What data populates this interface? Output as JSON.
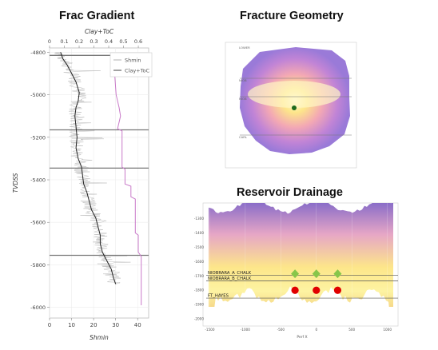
{
  "titles": {
    "left": "Frac Gradient",
    "top_right": "Fracture Geometry",
    "bottom_right": "Reservoir Drainage"
  },
  "colors": {
    "shmin": "#222222",
    "clay": "#c97ac9",
    "noise": "#b8b8b8",
    "horizon": "#777777",
    "drain_low": "#8a6dc8",
    "drain_mid": "#e6a6c6",
    "drain_high": "#fdf3a2",
    "well_marker": "#87c64a",
    "frac_point": "#e00000",
    "frac_center": "#1d6a1d"
  },
  "chart_data": [
    {
      "type": "line",
      "title": "Frac Gradient",
      "xlabel": "Shmin",
      "x2label": "Clay+ToC",
      "ylabel": "TVDSS",
      "xlim": [
        0,
        45
      ],
      "x2lim": [
        0,
        0.67
      ],
      "ylim": [
        -6050,
        -4780
      ],
      "xticks": [
        0,
        10,
        20,
        30,
        40
      ],
      "x2ticks": [
        0,
        0.1,
        0.2,
        0.3,
        0.4,
        0.5,
        0.6
      ],
      "x2ticklabels": [
        "0",
        "0.1",
        "0.2",
        "0.3",
        "0.4",
        "0.5",
        "0.6"
      ],
      "yticks": [
        -4800,
        -5000,
        -5200,
        -5400,
        -5600,
        -5800,
        -6000
      ],
      "horizons": [
        -4815,
        -5165,
        -5345,
        -5755
      ],
      "legend": [
        "Shmin",
        "Clay+ToC"
      ],
      "legend_position": "top-right",
      "grid": true,
      "series": [
        {
          "name": "Shmin",
          "depth": [
            -4800,
            -4815,
            -4830,
            -4860,
            -4900,
            -4940,
            -4990,
            -5030,
            -5060,
            -5100,
            -5150,
            -5200,
            -5250,
            -5300,
            -5340,
            -5380,
            -5420,
            -5460,
            -5500,
            -5540,
            -5580,
            -5620,
            -5660,
            -5700,
            -5740,
            -5780,
            -5820,
            -5860,
            -5890
          ],
          "value": [
            5,
            5.5,
            6,
            8,
            10,
            12,
            13.5,
            13,
            12,
            11.5,
            12,
            12.5,
            12,
            13,
            14.5,
            15,
            15.5,
            17,
            18,
            19,
            21,
            22,
            23,
            23,
            24,
            26,
            28,
            29,
            30
          ]
        },
        {
          "name": "Clay+ToC",
          "depth": [
            -4810,
            -4900,
            -5000,
            -5060,
            -5100,
            -5160,
            -5170,
            -5340,
            -5350,
            -5420,
            -5430,
            -5480,
            -5490,
            -5650,
            -5660,
            -5740,
            -5760,
            -5990
          ],
          "value": [
            0.43,
            0.44,
            0.45,
            0.47,
            0.48,
            0.46,
            0.49,
            0.49,
            0.51,
            0.51,
            0.55,
            0.55,
            0.58,
            0.58,
            0.6,
            0.6,
            0.62,
            0.62
          ]
        }
      ]
    },
    {
      "type": "heatmap",
      "title": "Fracture Geometry",
      "labels": [
        "LOWER",
        "NIOB",
        "NIOB",
        "CARL"
      ],
      "frac_center": true
    },
    {
      "type": "heatmap",
      "title": "Reservoir Drainage",
      "xlabel": "Perf X",
      "xlim": [
        -1550,
        1150
      ],
      "ylim": [
        -2050,
        -1190
      ],
      "xticks": [
        -1500,
        -1000,
        -500,
        0,
        500,
        1000
      ],
      "yticks": [
        -1300,
        -1400,
        -1500,
        -1600,
        -1700,
        -1800,
        -1900,
        -2000
      ],
      "horizons": [
        {
          "name": "NIOBRARA_A_CHALK",
          "y": -1695
        },
        {
          "name": "NIOBRARA_B_CHALK",
          "y": -1735
        },
        {
          "name": "FT_HAYES",
          "y": -1855
        }
      ],
      "wells_x": [
        -300,
        0,
        300
      ],
      "well_markers_y": -1685,
      "frac_points_y": -1800
    }
  ]
}
